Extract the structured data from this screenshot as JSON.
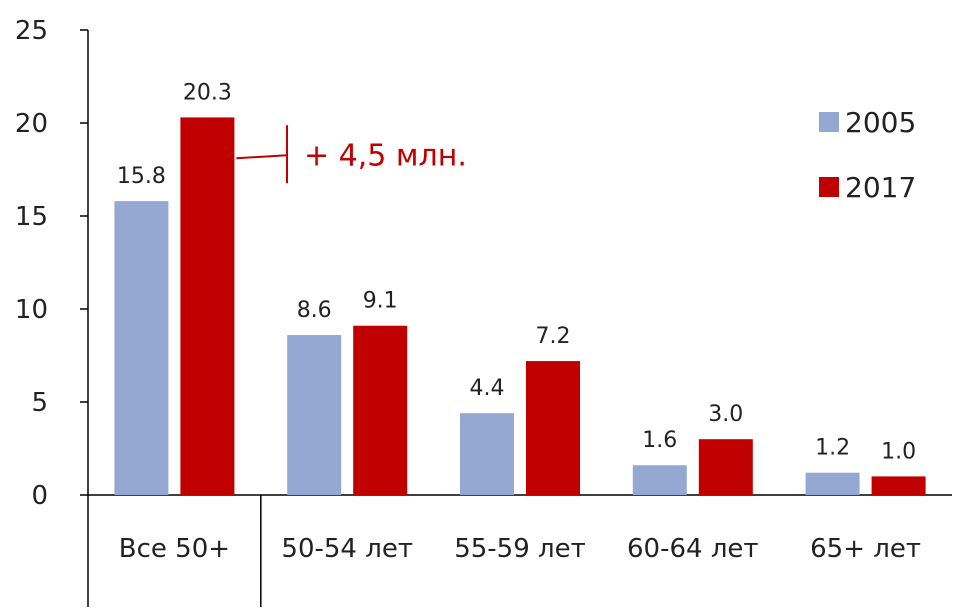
{
  "chart_data": {
    "type": "bar",
    "categories": [
      "Все 50+",
      "50-54 лет",
      "55-59 лет",
      "60-64 лет",
      "65+ лет"
    ],
    "series": [
      {
        "name": "2005",
        "values": [
          15.8,
          8.6,
          4.4,
          1.6,
          1.2
        ],
        "labels": [
          "15.8",
          "8.6",
          "4.4",
          "1.6",
          "1.2"
        ]
      },
      {
        "name": "2017",
        "values": [
          20.3,
          9.1,
          7.2,
          3.0,
          1.0
        ],
        "labels": [
          "20.3",
          "9.1",
          "7.2",
          "3.0",
          "1.0"
        ]
      }
    ],
    "ylim": [
      0,
      25
    ],
    "yticks": [
      "0",
      "5",
      "10",
      "15",
      "20",
      "25"
    ],
    "ytick_values": [
      0,
      5,
      10,
      15,
      20,
      25
    ],
    "annotation": {
      "text": "+ 4,5 млн.",
      "color": "#c00000"
    },
    "legend": "right",
    "grid": false,
    "colors": {
      "2005": "#95a8d3",
      "2017": "#c00000",
      "axis": "#000000"
    }
  }
}
